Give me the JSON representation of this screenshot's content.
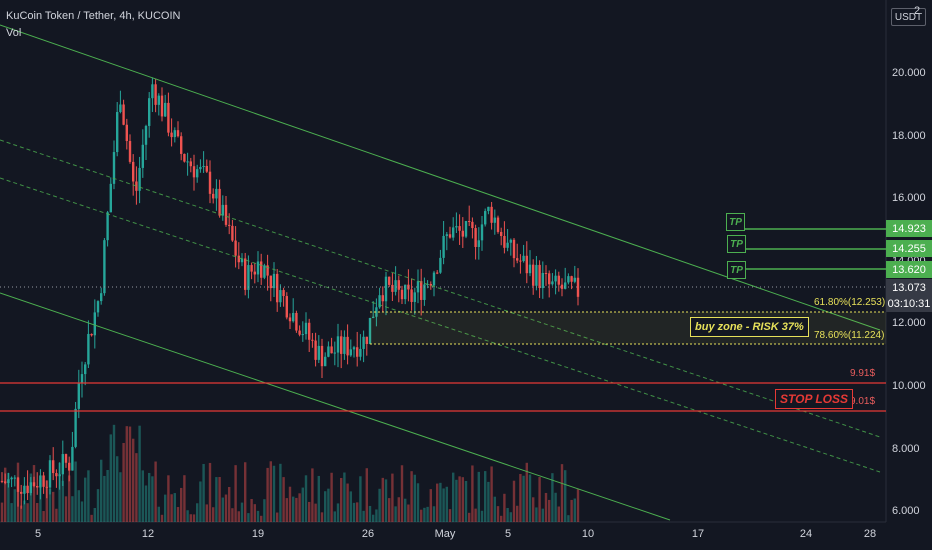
{
  "header": {
    "title": "KuCoin Token / Tether, 4h, KUCOIN",
    "indicator": "Vol"
  },
  "price_axis": {
    "currency": "USDT",
    "ticks": [
      "20.000",
      "18.000",
      "16.000",
      "14.000",
      "12.000",
      "10.000",
      "8.000",
      "6.000"
    ],
    "top_tick": "2",
    "current_price": "13.073",
    "countdown": "03:10:31"
  },
  "time_axis": {
    "ticks": [
      "5",
      "12",
      "19",
      "26",
      "May",
      "5",
      "10",
      "17",
      "24",
      "28"
    ]
  },
  "targets": [
    {
      "label": "TP",
      "price": "14.923"
    },
    {
      "label": "TP",
      "price": "14.255"
    },
    {
      "label": "TP",
      "price": "13.620"
    }
  ],
  "fib_levels": [
    "61.80%(12.253)",
    "78.60%(11.224)"
  ],
  "buy_zone": "buy zone - RISK 37%",
  "support_levels": [
    "9.91$",
    "9.01$"
  ],
  "stop_loss": "STOP LOSS",
  "colors": {
    "up": "#26a69a",
    "down": "#ef5350",
    "channel": "#4caf50",
    "fib": "#e6e05a",
    "level": "#e53935",
    "background": "#131722"
  },
  "chart_data": {
    "type": "candlestick",
    "symbol": "KuCoin Token / Tether",
    "interval": "4h",
    "ylim": [
      5.5,
      22
    ],
    "price_path": [
      {
        "t": "Apr 3",
        "v": 7.0
      },
      {
        "t": "Apr 5",
        "v": 6.9
      },
      {
        "t": "Apr 7",
        "v": 7.6
      },
      {
        "t": "Apr 8",
        "v": 10.5
      },
      {
        "t": "Apr 9",
        "v": 13.0
      },
      {
        "t": "Apr 10",
        "v": 19.5
      },
      {
        "t": "Apr 11",
        "v": 16.0
      },
      {
        "t": "Apr 12",
        "v": 19.7
      },
      {
        "t": "Apr 14",
        "v": 17.5
      },
      {
        "t": "Apr 16",
        "v": 16.5
      },
      {
        "t": "Apr 18",
        "v": 13.5
      },
      {
        "t": "Apr 20",
        "v": 14.0
      },
      {
        "t": "Apr 22",
        "v": 12.5
      },
      {
        "t": "Apr 24",
        "v": 11.0
      },
      {
        "t": "Apr 26",
        "v": 11.5
      },
      {
        "t": "Apr 27",
        "v": 13.2
      },
      {
        "t": "Apr 29",
        "v": 12.8
      },
      {
        "t": "Apr 30",
        "v": 13.5
      },
      {
        "t": "May 1",
        "v": 15.0
      },
      {
        "t": "May 3",
        "v": 14.8
      },
      {
        "t": "May 4",
        "v": 15.7
      },
      {
        "t": "May 6",
        "v": 14.3
      },
      {
        "t": "May 8",
        "v": 13.2
      },
      {
        "t": "May 9",
        "v": 13.07
      }
    ]
  }
}
